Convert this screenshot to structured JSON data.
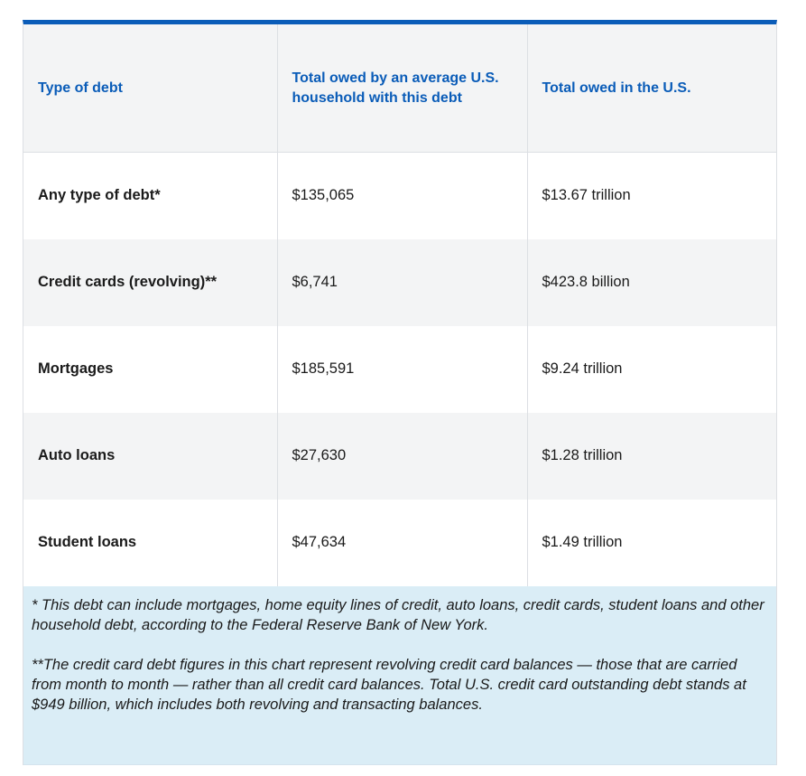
{
  "table": {
    "headers": [
      "Type of debt",
      "Total owed by an average U.S. household with this debt",
      "Total owed in the U.S."
    ],
    "rows": [
      {
        "type": "Any type of debt*",
        "household": "$135,065",
        "total": "$13.67 trillion"
      },
      {
        "type": "Credit cards (revolving)**",
        "household": "$6,741",
        "total": "$423.8 billion"
      },
      {
        "type": "Mortgages",
        "household": "$185,591",
        "total": "$9.24 trillion"
      },
      {
        "type": "Auto loans",
        "household": "$27,630",
        "total": "$1.28 trillion"
      },
      {
        "type": "Student loans",
        "household": "$47,634",
        "total": "$1.49 trillion"
      }
    ]
  },
  "footnotes": [
    "* This debt can include mortgages, home equity lines of credit, auto loans, credit cards, student loans and other household debt, according to the Federal Reserve Bank of New York.",
    "**The credit card debt figures in this chart represent revolving credit card balances — those that are carried from month to month — rather than all credit card balances. Total U.S. credit card outstanding debt stands at $949 billion, which includes both revolving and transacting balances."
  ],
  "colors": {
    "accent": "#0a5cb8",
    "header_bg": "#f3f4f5",
    "footnote_bg": "#daedf6"
  }
}
